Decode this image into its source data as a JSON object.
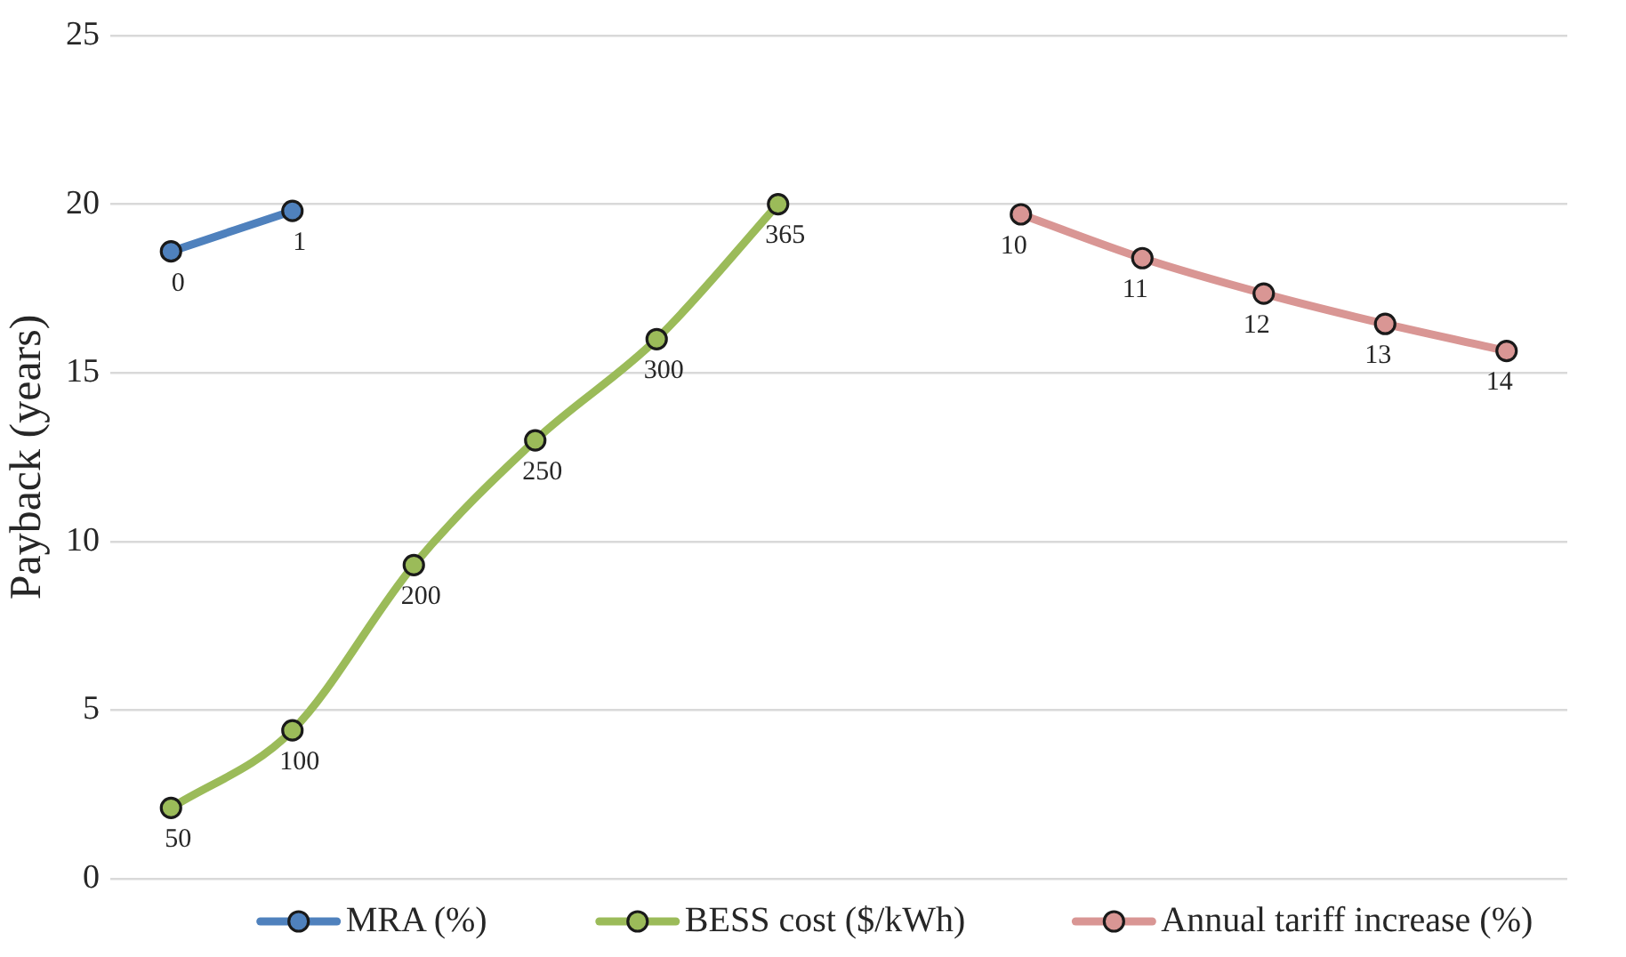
{
  "chart_data": {
    "type": "line",
    "ylabel": "Payback (years)",
    "categories": [
      null,
      null,
      null,
      null,
      null,
      null,
      null,
      null,
      null,
      null,
      null,
      null
    ],
    "series": [
      {
        "name": "MRA (%)",
        "color": "#4f81bd",
        "values": [
          18.6,
          19.8,
          null,
          null,
          null,
          null,
          null,
          null,
          null,
          null,
          null,
          null
        ]
      },
      {
        "name": "BESS cost ($/kWh)",
        "color": "#9bbb59",
        "values": [
          2.1,
          4.4,
          9.3,
          13.0,
          16.0,
          20.0,
          null,
          null,
          null,
          null,
          null,
          null
        ]
      },
      {
        "name": "Annual tariff increase (%)",
        "color": "#d99694",
        "values": [
          null,
          null,
          null,
          null,
          null,
          null,
          null,
          19.7,
          18.4,
          17.35,
          16.45,
          15.65
        ]
      }
    ],
    "annotations": [
      {
        "text": "0",
        "y": 18.6
      },
      {
        "text": "1",
        "y": 19.8
      },
      {
        "text": "50",
        "y": 2.1
      },
      {
        "text": "100",
        "y": 4.4
      },
      {
        "text": "200",
        "y": 9.3
      },
      {
        "text": "250",
        "y": 13.0
      },
      {
        "text": "300",
        "y": 16.0
      },
      {
        "text": "365",
        "y": 20.0
      },
      {
        "text": "10",
        "y": 19.7
      },
      {
        "text": "11",
        "y": 18.4
      },
      {
        "text": "12",
        "y": 17.35
      },
      {
        "text": "13",
        "y": 16.45
      },
      {
        "text": "14",
        "y": 15.65
      }
    ],
    "ylim": [
      0,
      25
    ],
    "yticks": [
      0,
      5,
      10,
      15,
      20,
      25
    ],
    "grid": "y",
    "legend": "bottom",
    "marker": "circle",
    "line_style": "solid",
    "tick_labels": "y"
  }
}
